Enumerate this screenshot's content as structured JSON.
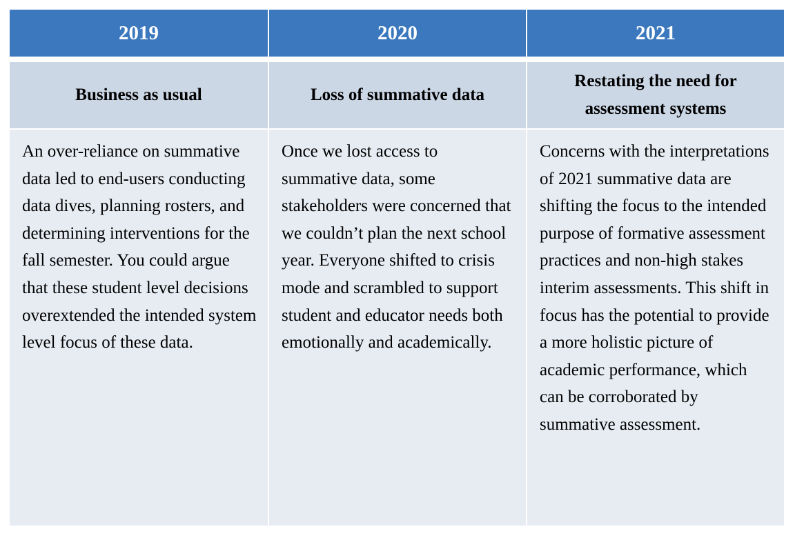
{
  "table": {
    "columns": [
      {
        "year": "2019",
        "heading": "Business as usual",
        "text": "An over-reliance on summative data led to end-users conducting data dives, planning rosters, and determining interventions for the fall semester. You could argue that these student level decisions overextended the intended system level focus of these data."
      },
      {
        "year": "2020",
        "heading": "Loss of summative data",
        "text": "Once we lost access to summative data, some stakeholders were concerned that we couldn’t plan the next school year. Everyone shifted to crisis mode and scrambled to support student and educator needs both emotionally and academically."
      },
      {
        "year": "2021",
        "heading": "Restating the need for assessment systems",
        "text": "Concerns with the interpretations of 2021 summative data are shifting the focus to the intended purpose of formative assessment practices and non-high stakes interim assessments. This shift in focus has the potential to provide a more holistic picture of academic performance, which can be corroborated by summative assessment."
      }
    ]
  }
}
